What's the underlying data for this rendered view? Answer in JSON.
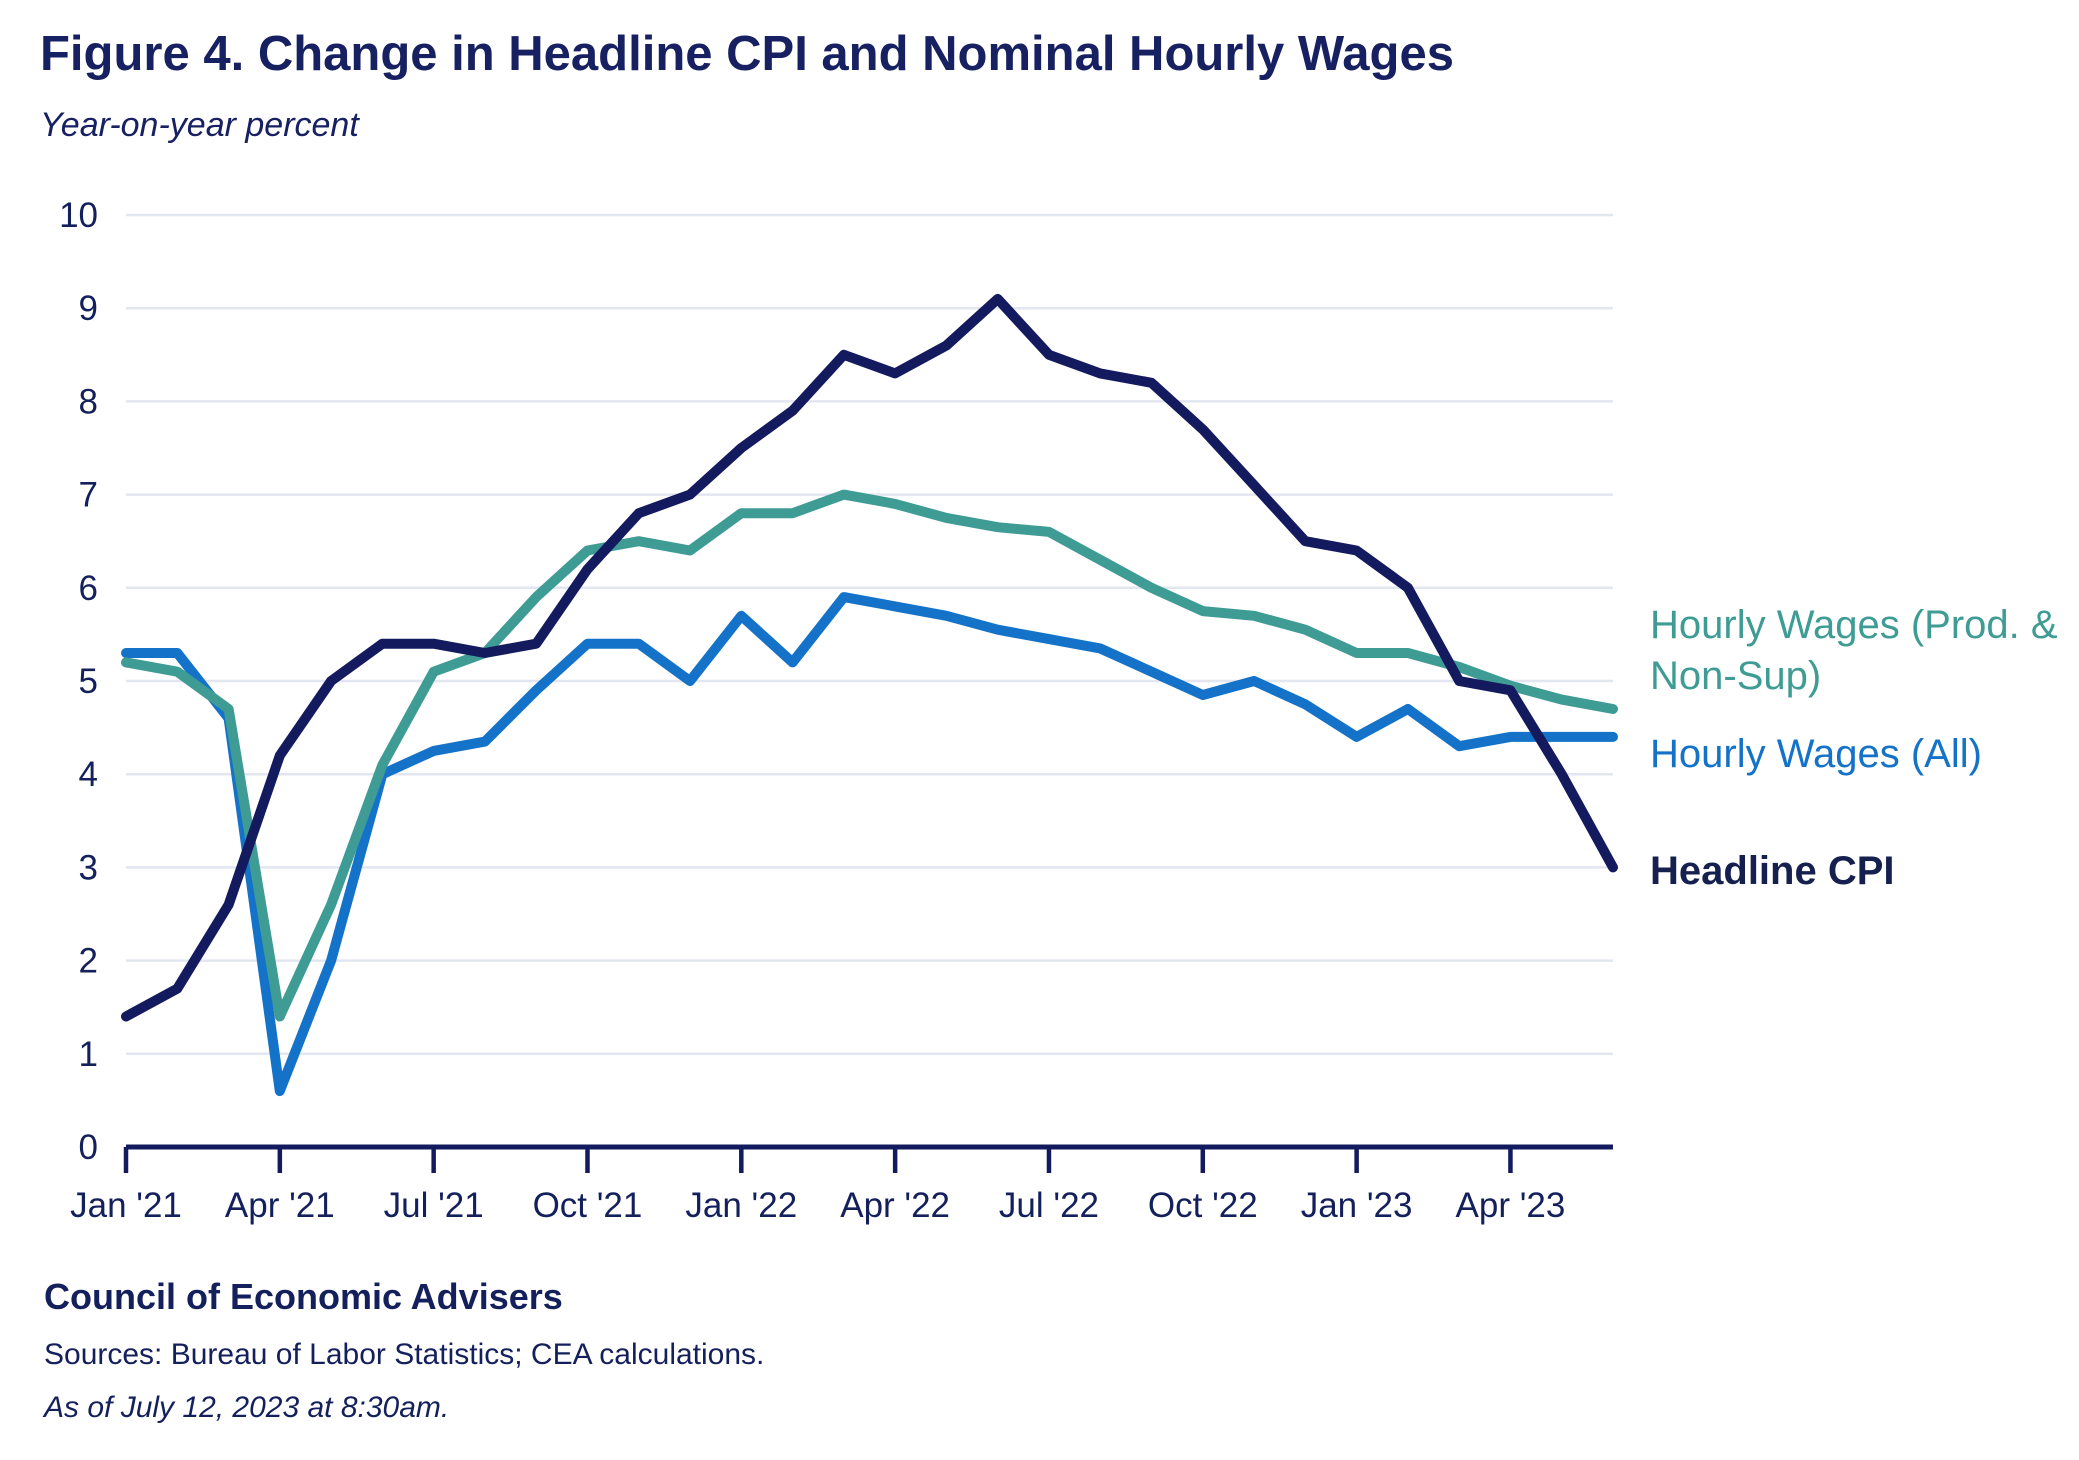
{
  "header": {
    "title": "Figure 4. Change in Headline CPI and Nominal Hourly Wages",
    "subtitle": "Year-on-year percent"
  },
  "footer": {
    "org": "Council of Economic Advisers",
    "sources": "Sources: Bureau of Labor Statistics; CEA calculations.",
    "as_of": "As of July 12, 2023 at 8:30am."
  },
  "colors": {
    "navy": "#131b5e",
    "blue": "#1473c8",
    "teal": "#3e9c95",
    "gridline": "#e2e6f1",
    "axis": "#131b5e",
    "text": "#14205c"
  },
  "chart_data": {
    "type": "line",
    "title": "Figure 4. Change in Headline CPI and Nominal Hourly Wages",
    "ylabel": "Year-on-year percent",
    "ylim": [
      0,
      10
    ],
    "y_tick_step": 1,
    "grid": "horizontal",
    "legend_position": "right",
    "x": [
      "Jan '21",
      "Feb '21",
      "Mar '21",
      "Apr '21",
      "May '21",
      "Jun '21",
      "Jul '21",
      "Aug '21",
      "Sep '21",
      "Oct '21",
      "Nov '21",
      "Dec '21",
      "Jan '22",
      "Feb '22",
      "Mar '22",
      "Apr '22",
      "May '22",
      "Jun '22",
      "Jul '22",
      "Aug '22",
      "Sep '22",
      "Oct '22",
      "Nov '22",
      "Dec '22",
      "Jan '23",
      "Feb '23",
      "Mar '23",
      "Apr '23",
      "May '23",
      "Jun '23"
    ],
    "x_tick_labels": [
      "Jan '21",
      "Apr '21",
      "Jul '21",
      "Oct '21",
      "Jan '22",
      "Apr '22",
      "Jul '22",
      "Oct '22",
      "Jan '23",
      "Apr '23"
    ],
    "x_tick_every": 3,
    "series": [
      {
        "name": "Hourly Wages (Prod. & Non-Sup)",
        "color": "#3e9c95",
        "values": [
          5.2,
          5.1,
          4.7,
          1.4,
          2.6,
          4.1,
          5.1,
          5.3,
          5.9,
          6.4,
          6.5,
          6.4,
          6.8,
          6.8,
          7.0,
          6.9,
          6.75,
          6.65,
          6.6,
          6.3,
          6.0,
          5.75,
          5.7,
          5.55,
          5.3,
          5.3,
          5.15,
          4.95,
          4.8,
          4.7
        ]
      },
      {
        "name": "Hourly Wages (All)",
        "color": "#1473c8",
        "values": [
          5.3,
          5.3,
          4.6,
          0.6,
          2.0,
          4.0,
          4.25,
          4.35,
          4.9,
          5.4,
          5.4,
          5.0,
          5.7,
          5.2,
          5.9,
          5.8,
          5.7,
          5.55,
          5.45,
          5.35,
          5.1,
          4.85,
          5.0,
          4.75,
          4.4,
          4.7,
          4.3,
          4.4,
          4.4,
          4.4
        ]
      },
      {
        "name": "Headline CPI",
        "color": "#131b5e",
        "values": [
          1.4,
          1.7,
          2.6,
          4.2,
          5.0,
          5.4,
          5.4,
          5.3,
          5.4,
          6.2,
          6.8,
          7.0,
          7.5,
          7.9,
          8.5,
          8.3,
          8.6,
          9.1,
          8.5,
          8.3,
          8.2,
          7.7,
          7.1,
          6.5,
          6.4,
          6.0,
          5.0,
          4.9,
          4.0,
          3.0
        ]
      }
    ],
    "draw_order": [
      1,
      0,
      2
    ]
  }
}
